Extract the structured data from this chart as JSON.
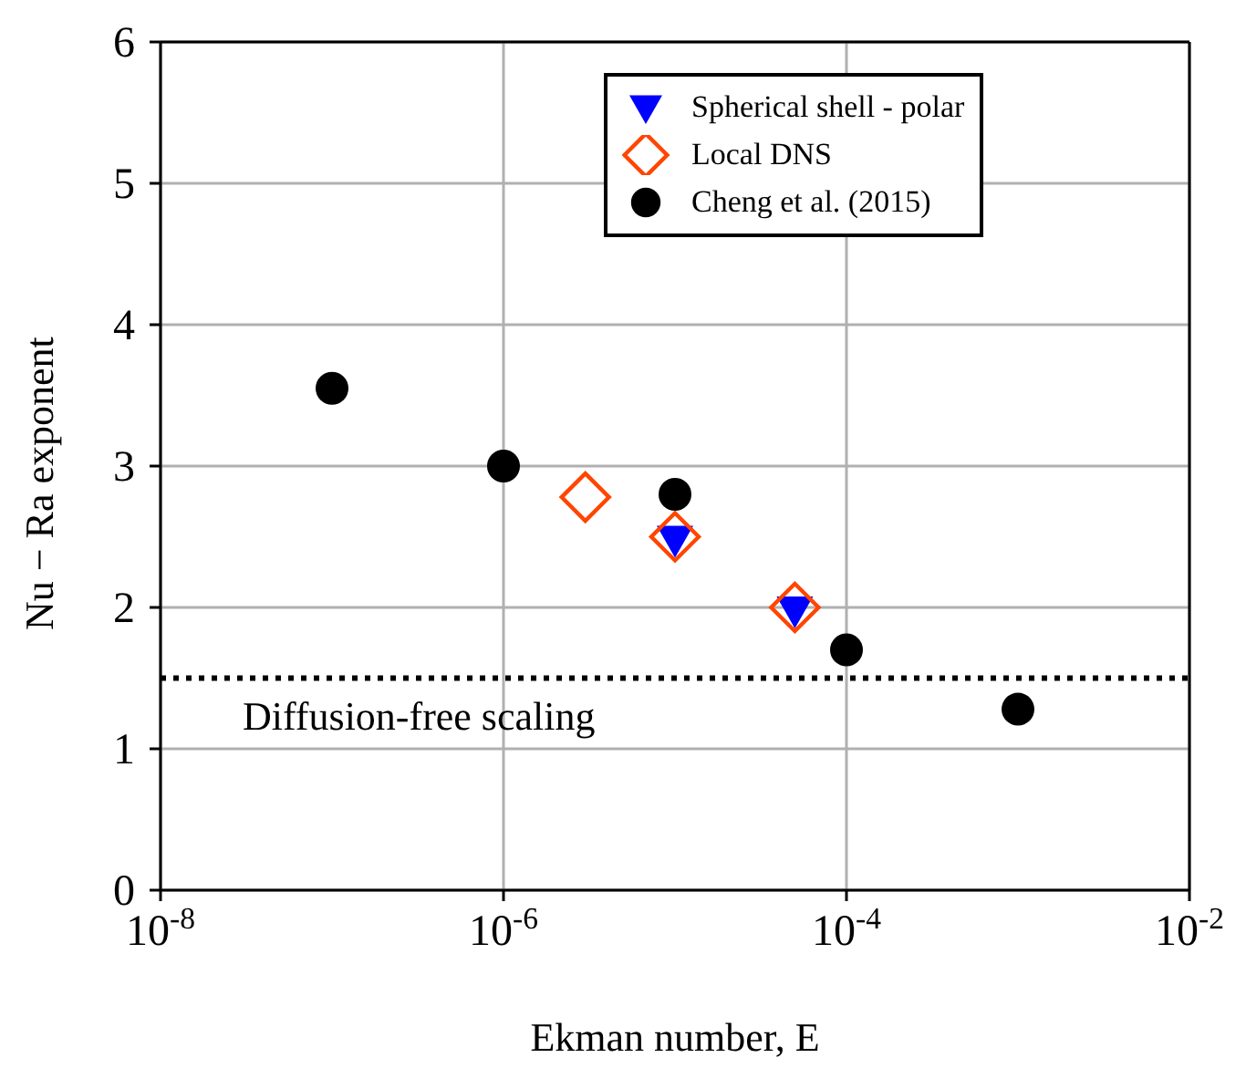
{
  "chart_data": {
    "type": "scatter",
    "xlabel": "Ekman number, E",
    "ylabel": "Nu − Ra exponent",
    "log": "x",
    "grid": true,
    "legend": "top right",
    "xlim": [
      1e-08,
      0.01
    ],
    "xticks": [
      {
        "value": 1e-08,
        "label": "10$^{-8}$"
      },
      {
        "value": 1e-06,
        "label": "10$^{-6}$"
      },
      {
        "value": 0.0001,
        "label": "10$^{-4}$"
      },
      {
        "value": 0.01,
        "label": "10$^{-2}$"
      }
    ],
    "ylim": [
      0,
      6
    ],
    "yticks": [
      0,
      1,
      2,
      3,
      4,
      5,
      6
    ],
    "ref_lines": [
      {
        "axis": "y",
        "value": 1.5,
        "label": "Diffusion-free scaling",
        "color": "#000000",
        "line_style": "dotted"
      }
    ],
    "series": [
      {
        "name": "Spherical shell - polar",
        "color": "#0000ff",
        "marker": "triangle",
        "x": [
          1e-05,
          5e-05
        ],
        "values": [
          2.48,
          1.98
        ]
      },
      {
        "name": "Local DNS",
        "color": "#ff4500",
        "marker": "diamond",
        "x": [
          3e-06,
          1e-05,
          5e-05
        ],
        "values": [
          2.78,
          2.5,
          2.0
        ]
      },
      {
        "name": "Cheng et al. (2015)",
        "color": "#000000",
        "marker": "circle",
        "x": [
          1e-07,
          1e-06,
          1e-05,
          0.0001,
          0.001
        ],
        "values": [
          3.55,
          3.0,
          2.8,
          1.7,
          1.28
        ]
      }
    ]
  }
}
